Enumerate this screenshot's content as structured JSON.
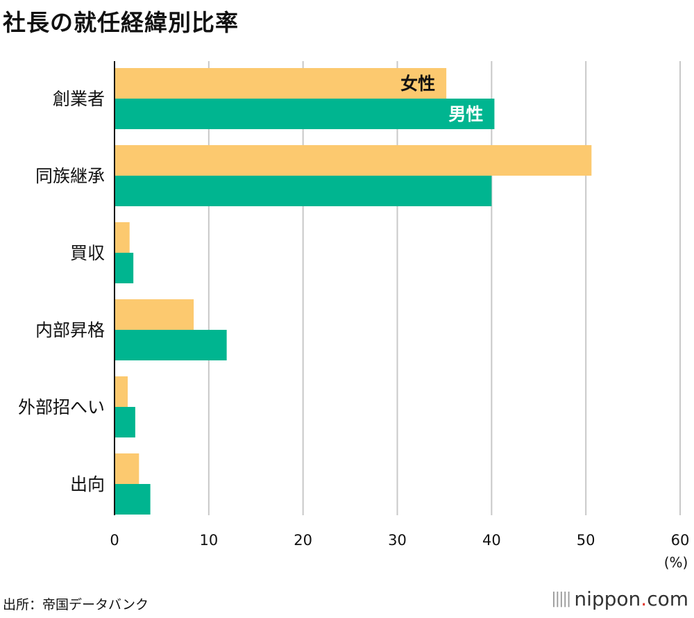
{
  "page_title": "社長の就任経緯別比率",
  "source": "出所：帝国データバンク",
  "brand": {
    "name_main": "nippon",
    "name_dot": ".",
    "name_tail": "com"
  },
  "colors": {
    "female": "#fcc96f",
    "male": "#00b590",
    "grid": "#c8c8c8",
    "axis": "#111111"
  },
  "chart_data": {
    "type": "bar",
    "orientation": "horizontal",
    "title": "社長の就任経緯別比率",
    "categories": [
      "創業者",
      "同族継承",
      "買収",
      "内部昇格",
      "外部招へい",
      "出向"
    ],
    "series": [
      {
        "name": "女性",
        "values": [
          35.2,
          50.6,
          1.6,
          8.4,
          1.4,
          2.6
        ]
      },
      {
        "name": "男性",
        "values": [
          40.3,
          40.0,
          2.0,
          11.9,
          2.2,
          3.8
        ]
      }
    ],
    "xlim": [
      0,
      60
    ],
    "xticks": [
      "0",
      "10",
      "20",
      "30",
      "40",
      "50",
      "60"
    ],
    "xlabel": "(%)",
    "grid": true,
    "legend": "inline-first-category"
  }
}
